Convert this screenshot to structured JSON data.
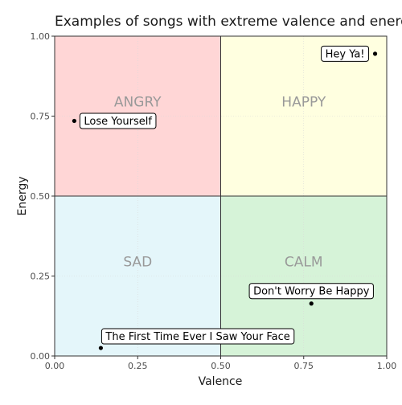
{
  "chart_data": {
    "type": "scatter",
    "title": "Examples of songs with extreme valence and energy",
    "xlabel": "Valence",
    "ylabel": "Energy",
    "xlim": [
      0,
      1
    ],
    "ylim": [
      0,
      1
    ],
    "xticks": [
      "0.00",
      "0.25",
      "0.50",
      "0.75",
      "1.00"
    ],
    "yticks": [
      "0.00",
      "0.25",
      "0.50",
      "0.75",
      "1.00"
    ],
    "grid": true,
    "quadrants": [
      {
        "label": "ANGRY",
        "x": [
          0,
          0.5
        ],
        "y": [
          0.5,
          1
        ],
        "color": "#ffd6d6",
        "label_at": [
          0.25,
          0.795
        ]
      },
      {
        "label": "HAPPY",
        "x": [
          0.5,
          1
        ],
        "y": [
          0.5,
          1
        ],
        "color": "#ffffe0",
        "label_at": [
          0.75,
          0.795
        ]
      },
      {
        "label": "SAD",
        "x": [
          0,
          0.5
        ],
        "y": [
          0,
          0.5
        ],
        "color": "#e4f6fa",
        "label_at": [
          0.25,
          0.295
        ]
      },
      {
        "label": "CALM",
        "x": [
          0.5,
          1
        ],
        "y": [
          0,
          0.5
        ],
        "color": "#d6f3d8",
        "label_at": [
          0.75,
          0.295
        ]
      }
    ],
    "divider_color": "#333333",
    "point_color": "#000000",
    "points": [
      {
        "name": "Hey Ya!",
        "x": 0.965,
        "y": 0.945
      },
      {
        "name": "Lose Yourself",
        "x": 0.059,
        "y": 0.735
      },
      {
        "name": "Don't Worry Be Happy",
        "x": 0.773,
        "y": 0.164
      },
      {
        "name": "The First Time Ever I Saw Your Face",
        "x": 0.139,
        "y": 0.025
      }
    ]
  }
}
